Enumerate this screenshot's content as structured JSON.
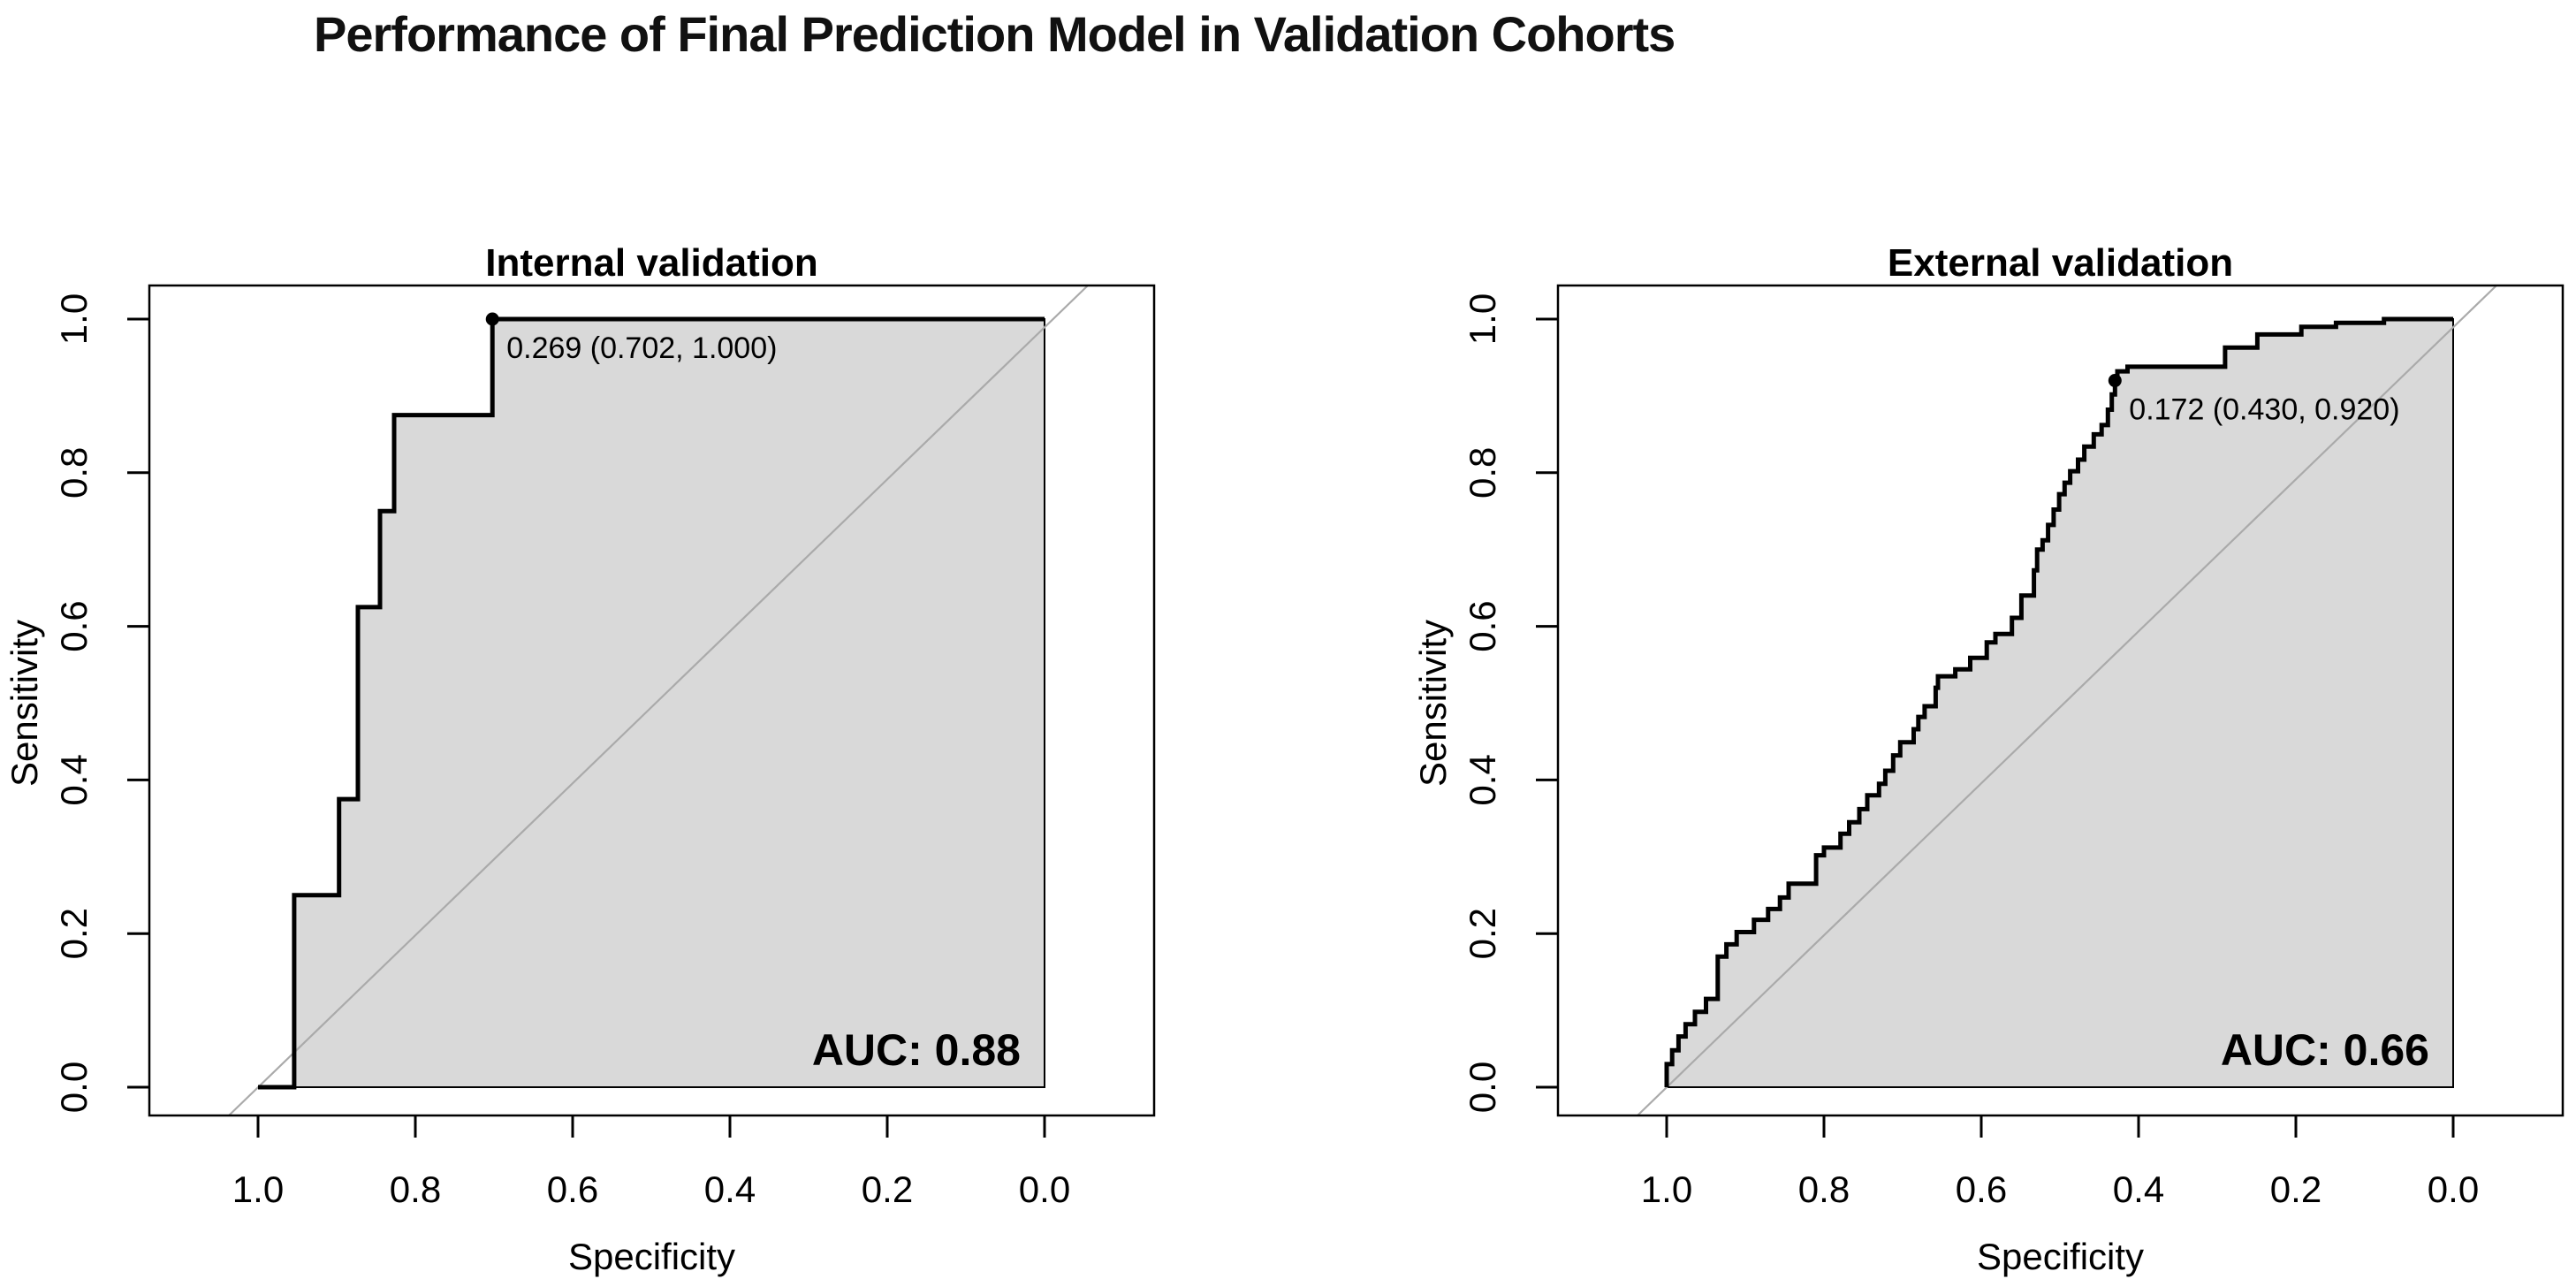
{
  "figure": {
    "title": "Performance of Final Prediction Model in Validation Cohorts",
    "background": "#ffffff"
  },
  "colors": {
    "curve": "#000000",
    "area_fill": "#d9d9d9",
    "area_border": "#000000",
    "diagonal": "#aaaaaa",
    "box": "#000000",
    "text": "#000000"
  },
  "chart_data": [
    {
      "type": "line",
      "variant": "roc-step",
      "panel": "internal",
      "title": "Internal validation",
      "xlabel": "Specificity",
      "ylabel": "Sensitivity",
      "x_reversed": true,
      "x_ticks": {
        "values": [
          1.0,
          0.8,
          0.6,
          0.4,
          0.2,
          0.0
        ],
        "labels": [
          "1.0",
          "0.8",
          "0.6",
          "0.4",
          "0.2",
          "0.0"
        ]
      },
      "y_ticks": {
        "values": [
          0.0,
          0.2,
          0.4,
          0.6,
          0.8,
          1.0
        ],
        "labels": [
          "0.0",
          "0.2",
          "0.4",
          "0.6",
          "0.8",
          "1.0"
        ]
      },
      "xlim": [
        1.0,
        0.0
      ],
      "ylim": [
        0.0,
        1.0
      ],
      "diagonal_reference": true,
      "auc": 0.88,
      "auc_label": "AUC: 0.88",
      "best_threshold": {
        "threshold": "0.269",
        "specificity": 0.702,
        "sensitivity": 1.0,
        "label": "0.269 (0.702, 1.000)"
      },
      "curve_points": [
        [
          1.0,
          0.0
        ],
        [
          0.954,
          0.0
        ],
        [
          0.954,
          0.25
        ],
        [
          0.897,
          0.25
        ],
        [
          0.897,
          0.375
        ],
        [
          0.873,
          0.375
        ],
        [
          0.873,
          0.625
        ],
        [
          0.845,
          0.625
        ],
        [
          0.845,
          0.75
        ],
        [
          0.827,
          0.75
        ],
        [
          0.827,
          0.875
        ],
        [
          0.702,
          0.875
        ],
        [
          0.702,
          1.0
        ],
        [
          0.0,
          1.0
        ]
      ]
    },
    {
      "type": "line",
      "variant": "roc-step",
      "panel": "external",
      "title": "External validation",
      "xlabel": "Specificity",
      "ylabel": "Sensitivity",
      "x_reversed": true,
      "x_ticks": {
        "values": [
          1.0,
          0.8,
          0.6,
          0.4,
          0.2,
          0.0
        ],
        "labels": [
          "1.0",
          "0.8",
          "0.6",
          "0.4",
          "0.2",
          "0.0"
        ]
      },
      "y_ticks": {
        "values": [
          0.0,
          0.2,
          0.4,
          0.6,
          0.8,
          1.0
        ],
        "labels": [
          "0.0",
          "0.2",
          "0.4",
          "0.6",
          "0.8",
          "1.0"
        ]
      },
      "xlim": [
        1.0,
        0.0
      ],
      "ylim": [
        0.0,
        1.0
      ],
      "diagonal_reference": true,
      "auc": 0.66,
      "auc_label": "AUC: 0.66",
      "best_threshold": {
        "threshold": "0.172",
        "specificity": 0.43,
        "sensitivity": 0.92,
        "label": "0.172 (0.430, 0.920)"
      },
      "curve_points": [
        [
          1.0,
          0.0
        ],
        [
          1.0,
          0.03
        ],
        [
          0.993,
          0.03
        ],
        [
          0.993,
          0.048
        ],
        [
          0.985,
          0.048
        ],
        [
          0.985,
          0.066
        ],
        [
          0.976,
          0.066
        ],
        [
          0.976,
          0.082
        ],
        [
          0.964,
          0.082
        ],
        [
          0.964,
          0.098
        ],
        [
          0.95,
          0.098
        ],
        [
          0.95,
          0.115
        ],
        [
          0.935,
          0.115
        ],
        [
          0.935,
          0.17
        ],
        [
          0.924,
          0.17
        ],
        [
          0.924,
          0.186
        ],
        [
          0.911,
          0.186
        ],
        [
          0.911,
          0.202
        ],
        [
          0.889,
          0.202
        ],
        [
          0.889,
          0.218
        ],
        [
          0.871,
          0.218
        ],
        [
          0.871,
          0.232
        ],
        [
          0.856,
          0.232
        ],
        [
          0.856,
          0.247
        ],
        [
          0.845,
          0.247
        ],
        [
          0.845,
          0.265
        ],
        [
          0.81,
          0.265
        ],
        [
          0.81,
          0.302
        ],
        [
          0.8,
          0.302
        ],
        [
          0.8,
          0.312
        ],
        [
          0.779,
          0.312
        ],
        [
          0.779,
          0.33
        ],
        [
          0.768,
          0.33
        ],
        [
          0.768,
          0.345
        ],
        [
          0.755,
          0.345
        ],
        [
          0.755,
          0.362
        ],
        [
          0.745,
          0.362
        ],
        [
          0.745,
          0.38
        ],
        [
          0.73,
          0.38
        ],
        [
          0.73,
          0.395
        ],
        [
          0.722,
          0.395
        ],
        [
          0.722,
          0.412
        ],
        [
          0.712,
          0.412
        ],
        [
          0.712,
          0.432
        ],
        [
          0.703,
          0.432
        ],
        [
          0.703,
          0.449
        ],
        [
          0.686,
          0.449
        ],
        [
          0.686,
          0.466
        ],
        [
          0.68,
          0.466
        ],
        [
          0.68,
          0.482
        ],
        [
          0.672,
          0.482
        ],
        [
          0.672,
          0.496
        ],
        [
          0.658,
          0.496
        ],
        [
          0.658,
          0.52
        ],
        [
          0.655,
          0.52
        ],
        [
          0.655,
          0.535
        ],
        [
          0.633,
          0.535
        ],
        [
          0.633,
          0.544
        ],
        [
          0.614,
          0.544
        ],
        [
          0.614,
          0.559
        ],
        [
          0.593,
          0.559
        ],
        [
          0.593,
          0.579
        ],
        [
          0.582,
          0.579
        ],
        [
          0.582,
          0.59
        ],
        [
          0.561,
          0.59
        ],
        [
          0.561,
          0.611
        ],
        [
          0.549,
          0.611
        ],
        [
          0.549,
          0.64
        ],
        [
          0.533,
          0.64
        ],
        [
          0.533,
          0.673
        ],
        [
          0.529,
          0.673
        ],
        [
          0.529,
          0.7
        ],
        [
          0.522,
          0.7
        ],
        [
          0.522,
          0.712
        ],
        [
          0.515,
          0.712
        ],
        [
          0.515,
          0.732
        ],
        [
          0.508,
          0.732
        ],
        [
          0.508,
          0.752
        ],
        [
          0.501,
          0.752
        ],
        [
          0.501,
          0.772
        ],
        [
          0.494,
          0.772
        ],
        [
          0.494,
          0.787
        ],
        [
          0.487,
          0.787
        ],
        [
          0.487,
          0.802
        ],
        [
          0.477,
          0.802
        ],
        [
          0.477,
          0.817
        ],
        [
          0.469,
          0.817
        ],
        [
          0.469,
          0.834
        ],
        [
          0.457,
          0.834
        ],
        [
          0.457,
          0.85
        ],
        [
          0.447,
          0.85
        ],
        [
          0.447,
          0.862
        ],
        [
          0.439,
          0.862
        ],
        [
          0.439,
          0.882
        ],
        [
          0.434,
          0.882
        ],
        [
          0.434,
          0.902
        ],
        [
          0.43,
          0.902
        ],
        [
          0.43,
          0.92
        ],
        [
          0.427,
          0.92
        ],
        [
          0.427,
          0.932
        ],
        [
          0.414,
          0.932
        ],
        [
          0.414,
          0.938
        ],
        [
          0.29,
          0.938
        ],
        [
          0.29,
          0.963
        ],
        [
          0.249,
          0.963
        ],
        [
          0.249,
          0.98
        ],
        [
          0.193,
          0.98
        ],
        [
          0.193,
          0.99
        ],
        [
          0.149,
          0.99
        ],
        [
          0.149,
          0.995
        ],
        [
          0.088,
          0.995
        ],
        [
          0.088,
          1.0
        ],
        [
          0.0,
          1.0
        ]
      ]
    }
  ]
}
